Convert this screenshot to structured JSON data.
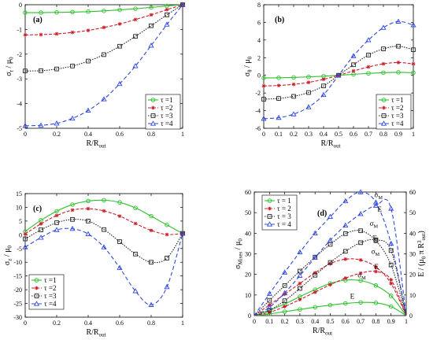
{
  "colors": {
    "tau1": "#2bc12b",
    "tau2": "#cc1f2a",
    "tau3": "#222222",
    "tau4": "#2f49e0",
    "axis": "#000000"
  },
  "chart_data": [
    {
      "id": "a",
      "type": "line",
      "panel_label": "(a)",
      "xlabel": "R/R",
      "xlabel_sub": "out",
      "ylabel": "σ",
      "ylabel_sub": "r",
      "ylabel_tail": "/ μ",
      "ylabel_tail_sub": "0",
      "xlim": [
        0,
        1
      ],
      "ylim": [
        -5,
        0
      ],
      "xticks": [
        0,
        0.2,
        0.4,
        0.6,
        0.8,
        1
      ],
      "xtick_labels": [
        "0",
        "0.2",
        "0.4",
        "0.6",
        "0.8",
        "1"
      ],
      "yticks": [
        0,
        -1,
        -2,
        -3,
        -4,
        -5
      ],
      "ytick_labels": [
        "0",
        "-1",
        "-2",
        "-3",
        "-4",
        "-5"
      ],
      "legend_position": "bottom-right",
      "x": [
        0,
        0.1,
        0.2,
        0.3,
        0.4,
        0.5,
        0.6,
        0.7,
        0.8,
        0.9,
        1
      ],
      "series": [
        {
          "name": "τ =1",
          "key": "tau1",
          "values": [
            -0.32,
            -0.32,
            -0.31,
            -0.3,
            -0.28,
            -0.25,
            -0.21,
            -0.16,
            -0.11,
            -0.05,
            0
          ]
        },
        {
          "name": "τ =2",
          "key": "tau2",
          "values": [
            -1.22,
            -1.21,
            -1.18,
            -1.12,
            -1.04,
            -0.92,
            -0.78,
            -0.6,
            -0.41,
            -0.2,
            0
          ]
        },
        {
          "name": "τ =3",
          "key": "tau3",
          "values": [
            -2.68,
            -2.67,
            -2.6,
            -2.48,
            -2.28,
            -2.02,
            -1.68,
            -1.28,
            -0.85,
            -0.41,
            0
          ]
        },
        {
          "name": "τ =4",
          "key": "tau4",
          "values": [
            -4.9,
            -4.88,
            -4.8,
            -4.6,
            -4.28,
            -3.82,
            -3.2,
            -2.48,
            -1.65,
            -0.8,
            0
          ]
        }
      ]
    },
    {
      "id": "b",
      "type": "line",
      "panel_label": "(b)",
      "xlabel": "R/R",
      "xlabel_sub": "out",
      "ylabel": "σ",
      "ylabel_sub": "θ",
      "ylabel_tail": "/ μ",
      "ylabel_tail_sub": "0",
      "xlim": [
        0,
        1
      ],
      "ylim": [
        -6,
        8
      ],
      "xticks": [
        0,
        0.1,
        0.2,
        0.3,
        0.4,
        0.5,
        0.6,
        0.7,
        0.8,
        0.9,
        1
      ],
      "xtick_labels": [
        "0",
        "0.1",
        "0.2",
        "0.3",
        "0.4",
        "0.5",
        "0.6",
        "0.7",
        "0.8",
        "0.9",
        "1"
      ],
      "yticks": [
        8,
        6,
        4,
        2,
        0,
        -2,
        -4,
        -6
      ],
      "ytick_labels": [
        "8",
        "6",
        "4",
        "2",
        "0",
        "-2",
        "-4",
        "-6"
      ],
      "legend_position": "bottom-right",
      "x": [
        0,
        0.1,
        0.2,
        0.3,
        0.4,
        0.5,
        0.6,
        0.7,
        0.8,
        0.9,
        1
      ],
      "series": [
        {
          "name": "τ =1",
          "key": "tau1",
          "values": [
            -0.3,
            -0.28,
            -0.24,
            -0.18,
            -0.1,
            0,
            0.12,
            0.22,
            0.3,
            0.34,
            0.3
          ]
        },
        {
          "name": "τ =2",
          "key": "tau2",
          "values": [
            -1.2,
            -1.15,
            -1.02,
            -0.8,
            -0.45,
            0,
            0.5,
            0.95,
            1.3,
            1.45,
            1.3
          ]
        },
        {
          "name": "τ =3",
          "key": "tau3",
          "values": [
            -2.7,
            -2.62,
            -2.38,
            -1.95,
            -1.2,
            0,
            1.2,
            2.3,
            3.0,
            3.3,
            2.9
          ]
        },
        {
          "name": "τ =4",
          "key": "tau4",
          "values": [
            -4.9,
            -4.8,
            -4.4,
            -3.6,
            -2.2,
            0,
            2.2,
            4.0,
            5.4,
            6.1,
            5.7
          ]
        }
      ]
    },
    {
      "id": "c",
      "type": "line",
      "panel_label": "(c)",
      "xlabel": "R/R",
      "xlabel_sub": "out",
      "ylabel": "σ",
      "ylabel_sub": "z",
      "ylabel_tail": "/ μ",
      "ylabel_tail_sub": "0",
      "xlim": [
        0,
        1
      ],
      "ylim": [
        -30,
        15
      ],
      "xticks": [
        0,
        0.2,
        0.4,
        0.6,
        0.8,
        1
      ],
      "xtick_labels": [
        "0",
        "0.2",
        "0.4",
        "0.6",
        "0.8",
        "1"
      ],
      "yticks": [
        15,
        10,
        5,
        0,
        -5,
        -10,
        -15,
        -20,
        -25,
        -30
      ],
      "ytick_labels": [
        "15",
        "10",
        "5",
        "0",
        "-5",
        "-10",
        "-15",
        "-20",
        "-25",
        "-30"
      ],
      "legend_position": "bottom-left",
      "x": [
        0,
        0.1,
        0.2,
        0.3,
        0.4,
        0.5,
        0.6,
        0.7,
        0.8,
        0.9,
        1
      ],
      "series": [
        {
          "name": "τ =1",
          "key": "tau1",
          "values": [
            1.2,
            5.3,
            8.6,
            11.0,
            12.3,
            12.6,
            11.8,
            9.8,
            6.8,
            3.6,
            0.5
          ]
        },
        {
          "name": "τ =2",
          "key": "tau2",
          "values": [
            0.3,
            4.0,
            7.0,
            9.0,
            9.5,
            8.7,
            6.8,
            4.1,
            1.6,
            0.1,
            0.5
          ]
        },
        {
          "name": "τ =3",
          "key": "tau3",
          "values": [
            -1.5,
            1.8,
            4.4,
            5.6,
            5.0,
            1.9,
            -2.5,
            -7.0,
            -10.0,
            -8.5,
            0.5
          ]
        },
        {
          "name": "τ =4",
          "key": "tau4",
          "values": [
            -4.5,
            -1.0,
            1.8,
            2.2,
            0.3,
            -4.5,
            -12.0,
            -20.5,
            -25.5,
            -19.0,
            0.5
          ]
        }
      ]
    },
    {
      "id": "d",
      "type": "line",
      "panel_label": "(d)",
      "xlabel": "R/R",
      "xlabel_sub": "out",
      "ylabel": "σ",
      "ylabel_sub": "Mises",
      "ylabel_tail": "/ μ",
      "ylabel_tail_sub": "0",
      "ylabel_right": "E / (μ",
      "ylabel_right_sub": "0",
      "ylabel_right_mid": " π R",
      "ylabel_right_sup": "3",
      "ylabel_right_sub2": "out",
      "ylabel_right_tail": ")",
      "xlim": [
        0,
        1
      ],
      "ylim": [
        0,
        60
      ],
      "xticks": [
        0,
        0.1,
        0.2,
        0.3,
        0.4,
        0.5,
        0.6,
        0.7,
        0.8,
        0.9,
        1
      ],
      "xtick_labels": [
        "0",
        "0.1",
        "0.2",
        "0.3",
        "0.4",
        "0.5",
        "0.6",
        "0.7",
        "0.8",
        "0.9",
        "1"
      ],
      "yticks": [
        0,
        10,
        20,
        30,
        40,
        50,
        60
      ],
      "ytick_labels": [
        "0",
        "10",
        "20",
        "30",
        "40",
        "50",
        "60"
      ],
      "yticks_right": [
        0,
        10,
        20,
        30,
        40,
        50,
        60
      ],
      "ytick_labels_right": [
        "0",
        "10",
        "20",
        "30",
        "40",
        "50",
        "60"
      ],
      "legend_position": "top-left",
      "x": [
        0,
        0.1,
        0.2,
        0.3,
        0.4,
        0.5,
        0.6,
        0.7,
        0.8,
        0.9,
        1
      ],
      "series": [
        {
          "name": "τ = 1",
          "key": "tau1",
          "kind": "sigma",
          "values": [
            0,
            2.6,
            5.6,
            9.2,
            12.6,
            15.6,
            17.2,
            17.0,
            14.6,
            9.6,
            0
          ]
        },
        {
          "name": "τ = 2",
          "key": "tau2",
          "kind": "sigma",
          "values": [
            0,
            5.2,
            10.4,
            15.6,
            20.8,
            25.2,
            27.4,
            27.0,
            23.6,
            15.6,
            0
          ]
        },
        {
          "name": "τ = 3",
          "key": "tau3",
          "kind": "sigma",
          "values": [
            0,
            7.4,
            14.6,
            21.6,
            28.4,
            34.6,
            39.8,
            41.2,
            36.4,
            24.6,
            0
          ]
        },
        {
          "name": "τ = 4",
          "key": "tau4",
          "kind": "sigma",
          "values": [
            0,
            10.6,
            21.0,
            30.8,
            40.0,
            48.0,
            55.6,
            60.0,
            55.0,
            35.0,
            0
          ]
        },
        {
          "name": "",
          "key": "tau1",
          "kind": "energy",
          "values": [
            0,
            0.8,
            1.9,
            3.0,
            4.1,
            5.1,
            5.9,
            6.4,
            6.2,
            4.4,
            0
          ]
        },
        {
          "name": "",
          "key": "tau2",
          "kind": "energy",
          "values": [
            0,
            1.6,
            4.4,
            7.8,
            11.4,
            15.0,
            18.2,
            20.6,
            21.4,
            17.4,
            0
          ]
        },
        {
          "name": "",
          "key": "tau3",
          "kind": "energy",
          "values": [
            0,
            2.6,
            7.2,
            13.2,
            19.6,
            25.8,
            31.2,
            35.4,
            36.8,
            31.6,
            0
          ]
        },
        {
          "name": "",
          "key": "tau4",
          "kind": "energy",
          "values": [
            0,
            4.0,
            11.0,
            19.4,
            28.2,
            36.6,
            43.8,
            49.4,
            53.4,
            52.0,
            0
          ]
        }
      ],
      "annotations": [
        {
          "text": "σ",
          "sub": "M",
          "x": 0.79,
          "y": 57.5
        },
        {
          "text": "E",
          "sub": "",
          "x": 0.81,
          "y": 50.5
        },
        {
          "text": "σ",
          "sub": "M",
          "x": 0.76,
          "y": 43.5
        },
        {
          "text": "E",
          "sub": "",
          "x": 0.78,
          "y": 36.5
        },
        {
          "text": "σ",
          "sub": "M",
          "x": 0.77,
          "y": 30.0
        },
        {
          "text": "E",
          "sub": "",
          "x": 0.79,
          "y": 22.5
        },
        {
          "text": "σ",
          "sub": "M",
          "x": 0.68,
          "y": 18.5
        },
        {
          "text": "E",
          "sub": "",
          "x": 0.63,
          "y": 8.2
        }
      ]
    }
  ]
}
